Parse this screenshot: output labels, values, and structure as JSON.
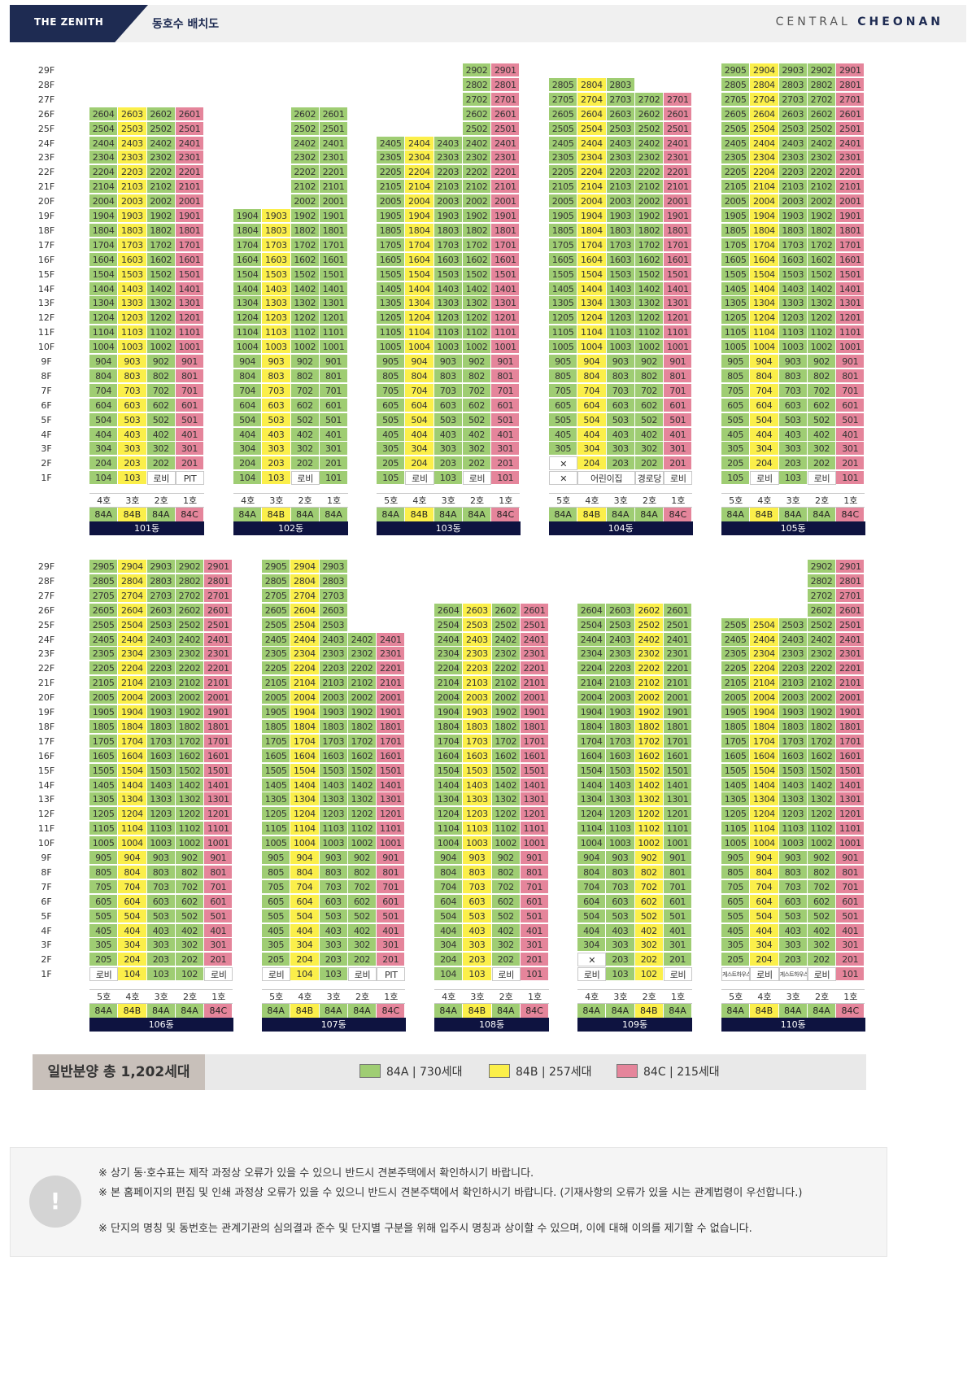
{
  "header": {
    "logo": "THE ZENITH",
    "title": "동호수 배치도",
    "brand_left": "CENTRAL",
    "brand_right": "CHEONAN"
  },
  "floors": [
    "29F",
    "28F",
    "27F",
    "26F",
    "25F",
    "24F",
    "23F",
    "22F",
    "21F",
    "20F",
    "19F",
    "18F",
    "17F",
    "16F",
    "15F",
    "14F",
    "13F",
    "12F",
    "11F",
    "10F",
    "9F",
    "8F",
    "7F",
    "6F",
    "5F",
    "4F",
    "3F",
    "2F",
    "1F"
  ],
  "buildings": [
    {
      "name": "101동",
      "lines": [
        {
          "ho": "4호",
          "type": "84A",
          "top": 26,
          "f1": "104"
        },
        {
          "ho": "3호",
          "type": "84B",
          "top": 26,
          "f1": "103"
        },
        {
          "ho": "2호",
          "type": "84A",
          "top": 26,
          "f1": "로비"
        },
        {
          "ho": "1호",
          "type": "84C",
          "top": 26,
          "f1": "PIT"
        }
      ]
    },
    {
      "name": "102동",
      "lines": [
        {
          "ho": "4호",
          "type": "84A",
          "top": 19,
          "f1": "104"
        },
        {
          "ho": "3호",
          "type": "84B",
          "top": 19,
          "f1": "103"
        },
        {
          "ho": "2호",
          "type": "84A",
          "top": 26,
          "f1": "로비"
        },
        {
          "ho": "1호",
          "type": "84A",
          "top": 26,
          "f1": "101"
        }
      ]
    },
    {
      "name": "103동",
      "lines": [
        {
          "ho": "5호",
          "type": "84A",
          "top": 24,
          "f1": "105"
        },
        {
          "ho": "4호",
          "type": "84B",
          "top": 24,
          "f1": "로비"
        },
        {
          "ho": "3호",
          "type": "84A",
          "top": 24,
          "f1": "103"
        },
        {
          "ho": "2호",
          "type": "84A",
          "top": 29,
          "f1": "로비"
        },
        {
          "ho": "1호",
          "type": "84C",
          "top": 29,
          "f1": "101"
        }
      ]
    },
    {
      "name": "104동",
      "lines": [
        {
          "ho": "5호",
          "type": "84A",
          "top": 28,
          "f1": "X",
          "f2": "X"
        },
        {
          "ho": "4호",
          "type": "84B",
          "top": 28,
          "f1": "어린이집",
          "f1span": 2
        },
        {
          "ho": "3호",
          "type": "84A",
          "top": 28,
          "f1": "SKIP"
        },
        {
          "ho": "2호",
          "type": "84A",
          "top": 27,
          "f1": "경로당"
        },
        {
          "ho": "1호",
          "type": "84C",
          "top": 27,
          "f1": "로비"
        }
      ]
    },
    {
      "name": "105동",
      "lines": [
        {
          "ho": "5호",
          "type": "84A",
          "top": 29,
          "f1": "105"
        },
        {
          "ho": "4호",
          "type": "84B",
          "top": 29,
          "f1": "로비"
        },
        {
          "ho": "3호",
          "type": "84A",
          "top": 29,
          "f1": "103"
        },
        {
          "ho": "2호",
          "type": "84A",
          "top": 29,
          "f1": "로비"
        },
        {
          "ho": "1호",
          "type": "84C",
          "top": 29,
          "f1": "101"
        }
      ]
    },
    {
      "name": "106동",
      "lines": [
        {
          "ho": "5호",
          "type": "84A",
          "top": 29,
          "f1": "로비"
        },
        {
          "ho": "4호",
          "type": "84B",
          "top": 29,
          "f1": "104"
        },
        {
          "ho": "3호",
          "type": "84A",
          "top": 29,
          "f1": "103"
        },
        {
          "ho": "2호",
          "type": "84A",
          "top": 29,
          "f1": "102"
        },
        {
          "ho": "1호",
          "type": "84C",
          "top": 29,
          "f1": "로비"
        }
      ]
    },
    {
      "name": "107동",
      "lines": [
        {
          "ho": "5호",
          "type": "84A",
          "top": 29,
          "f1": "로비"
        },
        {
          "ho": "4호",
          "type": "84B",
          "top": 29,
          "f1": "104"
        },
        {
          "ho": "3호",
          "type": "84A",
          "top": 29,
          "f1": "103"
        },
        {
          "ho": "2호",
          "type": "84A",
          "top": 24,
          "f1": "로비"
        },
        {
          "ho": "1호",
          "type": "84C",
          "top": 24,
          "f1": "PIT"
        }
      ]
    },
    {
      "name": "108동",
      "lines": [
        {
          "ho": "4호",
          "type": "84A",
          "top": 26,
          "f1": "104"
        },
        {
          "ho": "3호",
          "type": "84B",
          "top": 26,
          "f1": "103"
        },
        {
          "ho": "2호",
          "type": "84A",
          "top": 26,
          "f1": "로비"
        },
        {
          "ho": "1호",
          "type": "84C",
          "top": 26,
          "f1": "101"
        }
      ]
    },
    {
      "name": "109동",
      "lines": [
        {
          "ho": "4호",
          "type": "84A",
          "top": 26,
          "f1": "로비",
          "f2": "X",
          "f3": "304"
        },
        {
          "ho": "3호",
          "type": "84A",
          "top": 26,
          "f1": "103"
        },
        {
          "ho": "2호",
          "type": "84B",
          "top": 26,
          "f1": "102"
        },
        {
          "ho": "1호",
          "type": "84A",
          "top": 26,
          "f1": "로비"
        }
      ]
    },
    {
      "name": "110동",
      "lines": [
        {
          "ho": "5호",
          "type": "84A",
          "top": 25,
          "f1": "게스트하우스"
        },
        {
          "ho": "4호",
          "type": "84B",
          "top": 25,
          "f1": "로비"
        },
        {
          "ho": "3호",
          "type": "84A",
          "top": 25,
          "f1": "게스트하우스"
        },
        {
          "ho": "2호",
          "type": "84A",
          "top": 29,
          "f1": "로비"
        },
        {
          "ho": "1호",
          "type": "84C",
          "top": 29,
          "f1": "101"
        }
      ]
    }
  ],
  "colors": {
    "84A": "#9fcd73",
    "84B": "#fbef4a",
    "84C": "#e5859b",
    "building_bar": "#0e1340"
  },
  "summary": {
    "title": "일반분양 총 1,202세대",
    "legend": [
      {
        "type": "84A",
        "label": "84A | 730세대"
      },
      {
        "type": "84B",
        "label": "84B | 257세대"
      },
      {
        "type": "84C",
        "label": "84C | 215세대"
      }
    ]
  },
  "notice": {
    "icon": "exclamation-icon",
    "notes": [
      "※ 상기 동·호수표는 제작 과정상 오류가 있을 수 있으니 반드시 견본주택에서 확인하시기 바랍니다.",
      "※ 본 홈페이지의 편집 및 인쇄 과정상 오류가 있을 수 있으니 반드시 견본주택에서 확인하시기 바랍니다. (기재사항의 오류가 있을 시는 관계법령이 우선합니다.)",
      "※ 단지의 명칭 및 동번호는 관계기관의 심의결과 준수 및 단지별 구분을 위해 입주시 명칭과 상이할 수 있으며, 이에 대해 이의를 제기할 수 없습니다."
    ]
  }
}
